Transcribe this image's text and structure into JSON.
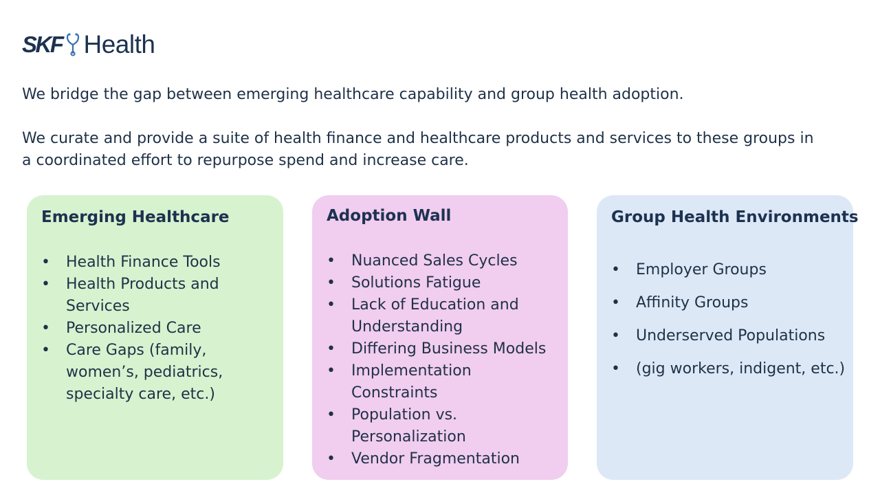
{
  "logo": {
    "brand": "SKF",
    "product": "Health",
    "icon": "stethoscope-icon",
    "color": "#1d3250"
  },
  "intro": {
    "line1": "We bridge the gap between emerging healthcare capability and group health adoption.",
    "line2": "We curate and provide a suite of health finance and healthcare products and services to these groups in a coordinated effort to repurpose spend and increase care."
  },
  "cards": [
    {
      "title": "Emerging Healthcare",
      "color": "#d7f2cf",
      "items": [
        "Health Finance Tools",
        "Health Products and Services",
        "Personalized Care",
        "Care Gaps (family, women’s, pediatrics, specialty care, etc.)"
      ]
    },
    {
      "title": "Adoption Wall",
      "color": "#f1cdef",
      "items": [
        "Nuanced Sales Cycles",
        "Solutions Fatigue",
        "Lack of Education and Understanding",
        "Differing Business Models",
        "Implementation Constraints",
        "Population vs. Personalization",
        "Vendor Fragmentation"
      ]
    },
    {
      "title": "Group Health Environments",
      "color": "#dce8f6",
      "items": [
        "Employer Groups",
        "Affinity Groups",
        "Underserved Populations",
        "(gig workers, indigent, etc.)"
      ]
    }
  ]
}
